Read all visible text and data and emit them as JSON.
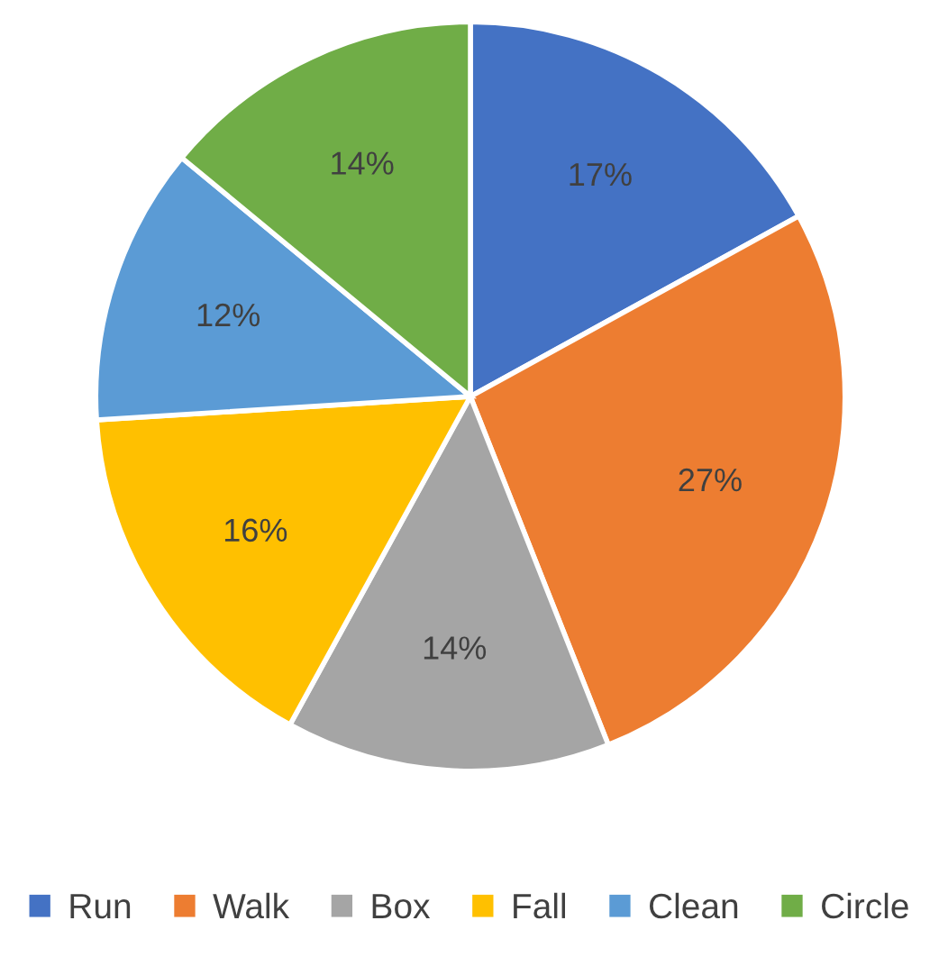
{
  "chart_data": {
    "type": "pie",
    "categories": [
      "Run",
      "Walk",
      "Box",
      "Fall",
      "Clean",
      "Circle"
    ],
    "values": [
      17,
      27,
      14,
      16,
      12,
      14
    ],
    "value_labels": [
      "17%",
      "27%",
      "14%",
      "16%",
      "12%",
      "14%"
    ],
    "colors": [
      "#4472c4",
      "#ed7d31",
      "#a5a5a5",
      "#ffc000",
      "#5b9bd5",
      "#70ad47"
    ],
    "legend": "bottom"
  }
}
